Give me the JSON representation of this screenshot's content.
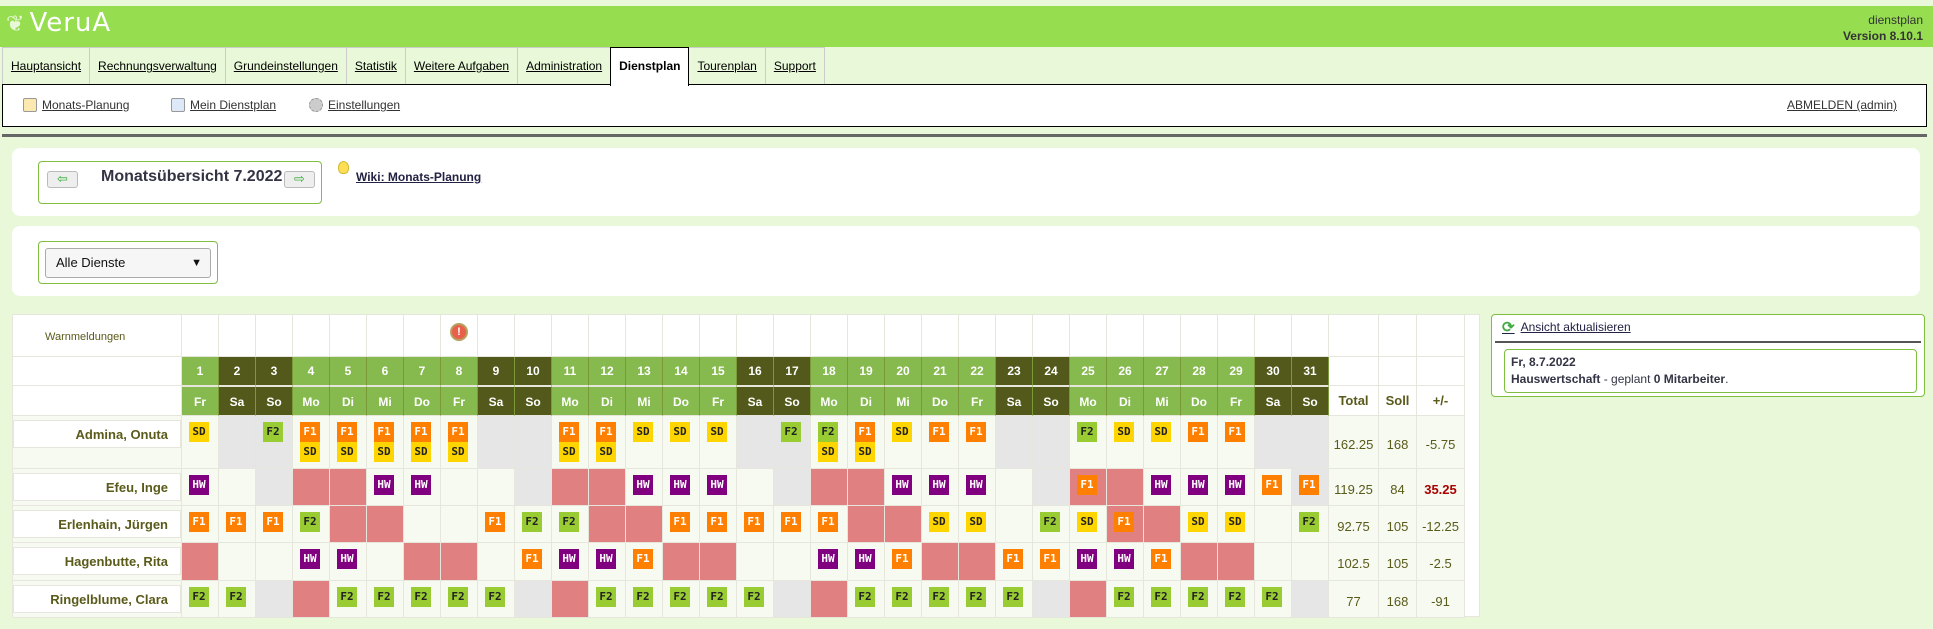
{
  "app": {
    "logo": "VeruA",
    "module": "dienstplan",
    "version": "Version 8.10.1"
  },
  "tabs": [
    {
      "label": "Hauptansicht"
    },
    {
      "label": "Rechnungsverwaltung"
    },
    {
      "label": "Grundeinstellungen"
    },
    {
      "label": "Statistik"
    },
    {
      "label": "Weitere Aufgaben"
    },
    {
      "label": "Administration"
    },
    {
      "label": "Dienstplan",
      "active": true
    },
    {
      "label": "Tourenplan"
    },
    {
      "label": "Support"
    }
  ],
  "submenu": {
    "items": [
      {
        "label": " Monats-Planung",
        "icon": "edit-calendar-icon"
      },
      {
        "label": " Mein Dienstplan",
        "icon": "calendar-icon"
      },
      {
        "label": " Einstellungen",
        "icon": "gear-icon"
      }
    ],
    "logout": "ABMELDEN (admin)"
  },
  "month": {
    "title": "Monatsübersicht 7.2022",
    "prev": "⇦",
    "next": "⇨",
    "wiki": "Wiki: Monats-Planung"
  },
  "filter": {
    "selected": "Alle Dienste"
  },
  "grid": {
    "warn_label": "Warnmeldungen",
    "warning_day": 8,
    "headers": {
      "total": "Total",
      "soll": "Soll",
      "diff": "+/-"
    },
    "days": [
      {
        "n": "1",
        "wd": "Fr"
      },
      {
        "n": "2",
        "wd": "Sa",
        "we": true
      },
      {
        "n": "3",
        "wd": "So",
        "we": true
      },
      {
        "n": "4",
        "wd": "Mo"
      },
      {
        "n": "5",
        "wd": "Di"
      },
      {
        "n": "6",
        "wd": "Mi"
      },
      {
        "n": "7",
        "wd": "Do"
      },
      {
        "n": "8",
        "wd": "Fr"
      },
      {
        "n": "9",
        "wd": "Sa",
        "we": true
      },
      {
        "n": "10",
        "wd": "So",
        "we": true
      },
      {
        "n": "11",
        "wd": "Mo"
      },
      {
        "n": "12",
        "wd": "Di"
      },
      {
        "n": "13",
        "wd": "Mi"
      },
      {
        "n": "14",
        "wd": "Do"
      },
      {
        "n": "15",
        "wd": "Fr"
      },
      {
        "n": "16",
        "wd": "Sa",
        "we": true
      },
      {
        "n": "17",
        "wd": "So",
        "we": true
      },
      {
        "n": "18",
        "wd": "Mo"
      },
      {
        "n": "19",
        "wd": "Di"
      },
      {
        "n": "20",
        "wd": "Mi"
      },
      {
        "n": "21",
        "wd": "Do"
      },
      {
        "n": "22",
        "wd": "Fr"
      },
      {
        "n": "23",
        "wd": "Sa",
        "we": true
      },
      {
        "n": "24",
        "wd": "So",
        "we": true
      },
      {
        "n": "25",
        "wd": "Mo"
      },
      {
        "n": "26",
        "wd": "Di"
      },
      {
        "n": "27",
        "wd": "Mi"
      },
      {
        "n": "28",
        "wd": "Do"
      },
      {
        "n": "29",
        "wd": "Fr"
      },
      {
        "n": "30",
        "wd": "Sa",
        "we": true
      },
      {
        "n": "31",
        "wd": "So",
        "we": true
      }
    ],
    "shift_colors": {
      "SD": "#ffd500",
      "F1": "#ff7f00",
      "F2": "#99cc33",
      "HW": "#800080",
      "absence": "#e08080",
      "free": "#e6e6e6"
    },
    "employees": [
      {
        "name": "Admina, Onuta",
        "total": "162.25",
        "soll": "168",
        "diff": "-5.75",
        "cells": [
          {
            "s": "SD"
          },
          {
            "bg": "we"
          },
          {
            "s": "F2",
            "bg": "we"
          },
          {
            "s": "F1 SD"
          },
          {
            "s": "F1 SD"
          },
          {
            "s": "F1 SD"
          },
          {
            "s": "F1 SD"
          },
          {
            "s": "F1 SD"
          },
          {
            "bg": "we"
          },
          {
            "bg": "we"
          },
          {
            "s": "F1 SD"
          },
          {
            "s": "F1 SD"
          },
          {
            "s": "SD"
          },
          {
            "s": "SD"
          },
          {
            "s": "SD"
          },
          {
            "bg": "we"
          },
          {
            "s": "F2",
            "bg": "we"
          },
          {
            "s": "F2 SD"
          },
          {
            "s": "F1 SD"
          },
          {
            "s": "SD"
          },
          {
            "s": "F1"
          },
          {
            "s": "F1"
          },
          {
            "bg": "we"
          },
          {
            "bg": "we"
          },
          {
            "s": "F2"
          },
          {
            "s": "SD"
          },
          {
            "s": "SD"
          },
          {
            "s": "F1"
          },
          {
            "s": "F1"
          },
          {
            "bg": "we"
          },
          {
            "bg": "we"
          }
        ]
      },
      {
        "name": "Efeu, Inge",
        "total": "119.25",
        "soll": "84",
        "diff": "35.25",
        "diff_alert": true,
        "cells": [
          {
            "s": "HW"
          },
          {},
          {
            "bg": "we"
          },
          {
            "bg": "ab"
          },
          {
            "bg": "ab"
          },
          {
            "s": "HW"
          },
          {
            "s": "HW"
          },
          {},
          {},
          {
            "bg": "we"
          },
          {
            "bg": "ab"
          },
          {
            "bg": "ab"
          },
          {
            "s": "HW"
          },
          {
            "s": "HW"
          },
          {
            "s": "HW"
          },
          {},
          {
            "bg": "we"
          },
          {
            "bg": "ab"
          },
          {
            "bg": "ab"
          },
          {
            "s": "HW"
          },
          {
            "s": "HW"
          },
          {
            "s": "HW"
          },
          {},
          {
            "bg": "we"
          },
          {
            "s": "F1",
            "bg": "ab"
          },
          {
            "bg": "ab"
          },
          {
            "s": "HW"
          },
          {
            "s": "HW"
          },
          {
            "s": "HW"
          },
          {
            "s": "F1"
          },
          {
            "s": "F1",
            "bg": "we"
          }
        ]
      },
      {
        "name": "Erlenhain, Jürgen",
        "total": "92.75",
        "soll": "105",
        "diff": "-12.25",
        "cells": [
          {
            "s": "F1"
          },
          {
            "s": "F1"
          },
          {
            "s": "F1"
          },
          {
            "s": "F2"
          },
          {
            "bg": "ab"
          },
          {
            "bg": "ab"
          },
          {},
          {},
          {
            "s": "F1"
          },
          {
            "s": "F2"
          },
          {
            "s": "F2"
          },
          {
            "bg": "ab"
          },
          {
            "bg": "ab"
          },
          {
            "s": "F1"
          },
          {
            "s": "F1"
          },
          {
            "s": "F1"
          },
          {
            "s": "F1"
          },
          {
            "s": "F1"
          },
          {
            "bg": "ab"
          },
          {
            "bg": "ab"
          },
          {
            "s": "SD"
          },
          {
            "s": "SD"
          },
          {},
          {
            "s": "F2"
          },
          {
            "s": "SD"
          },
          {
            "s": "F1",
            "bg": "ab"
          },
          {
            "bg": "ab"
          },
          {
            "s": "SD"
          },
          {
            "s": "SD"
          },
          {},
          {
            "s": "F2"
          }
        ]
      },
      {
        "name": "Hagenbutte, Rita",
        "total": "102.5",
        "soll": "105",
        "diff": "-2.5",
        "cells": [
          {
            "bg": "ab"
          },
          {},
          {},
          {
            "s": "HW"
          },
          {
            "s": "HW"
          },
          {},
          {
            "bg": "ab"
          },
          {
            "bg": "ab"
          },
          {},
          {
            "s": "F1"
          },
          {
            "s": "HW"
          },
          {
            "s": "HW"
          },
          {
            "s": "F1"
          },
          {
            "bg": "ab"
          },
          {
            "bg": "ab"
          },
          {},
          {},
          {
            "s": "HW"
          },
          {
            "s": "HW"
          },
          {
            "s": "F1"
          },
          {
            "bg": "ab"
          },
          {
            "bg": "ab"
          },
          {
            "s": "F1"
          },
          {
            "s": "F1"
          },
          {
            "s": "HW"
          },
          {
            "s": "HW"
          },
          {
            "s": "F1"
          },
          {
            "bg": "ab"
          },
          {
            "bg": "ab"
          },
          {},
          {}
        ]
      },
      {
        "name": "Ringelblume, Clara",
        "total": "77",
        "soll": "168",
        "diff": "-91",
        "cells": [
          {
            "s": "F2"
          },
          {
            "s": "F2"
          },
          {
            "bg": "we"
          },
          {
            "bg": "ab"
          },
          {
            "s": "F2"
          },
          {
            "s": "F2"
          },
          {
            "s": "F2"
          },
          {
            "s": "F2"
          },
          {
            "s": "F2"
          },
          {
            "bg": "we"
          },
          {
            "bg": "ab"
          },
          {
            "s": "F2"
          },
          {
            "s": "F2"
          },
          {
            "s": "F2"
          },
          {
            "s": "F2"
          },
          {
            "s": "F2"
          },
          {
            "bg": "we"
          },
          {
            "bg": "ab"
          },
          {
            "s": "F2"
          },
          {
            "s": "F2"
          },
          {
            "s": "F2"
          },
          {
            "s": "F2"
          },
          {
            "s": "F2"
          },
          {
            "bg": "we"
          },
          {
            "bg": "ab"
          },
          {
            "s": "F2"
          },
          {
            "s": "F2"
          },
          {
            "s": "F2"
          },
          {
            "s": "F2"
          },
          {
            "s": "F2"
          },
          {
            "bg": "we"
          }
        ]
      }
    ]
  },
  "side": {
    "refresh": " Ansicht aktualisieren",
    "date": "Fr, 8.7.2022",
    "service": "Hauswertschaft",
    "mid": " - geplant ",
    "count": "0 Mitarbeiter",
    "end": "."
  }
}
